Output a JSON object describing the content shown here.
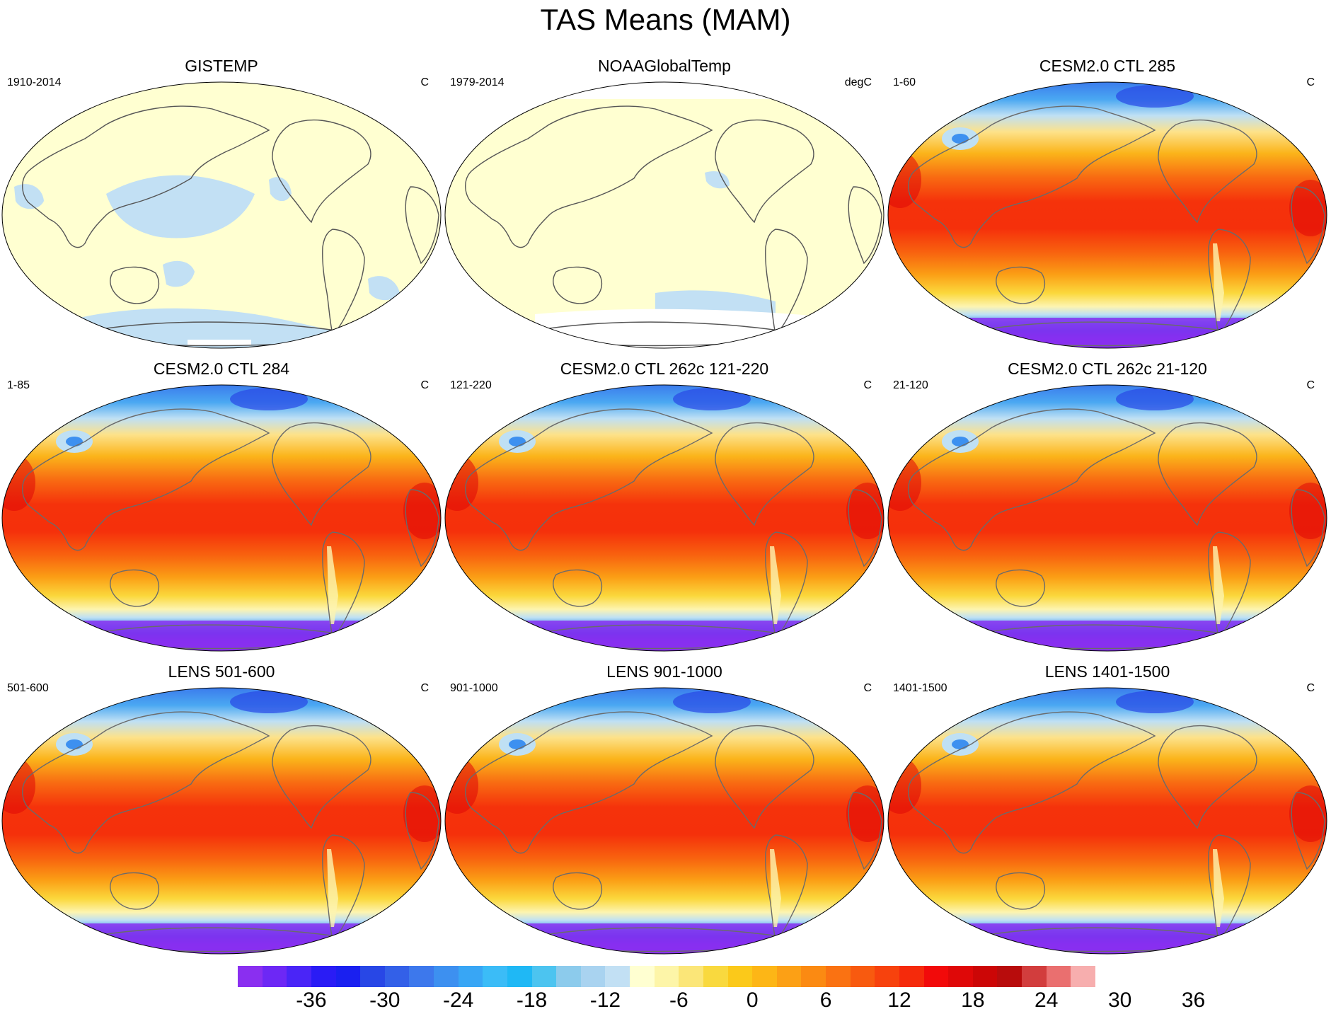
{
  "title": "TAS Means (MAM)",
  "panels": [
    {
      "title": "GISTEMP",
      "period": "1910-2014",
      "units": "C",
      "style": "obs-anomaly"
    },
    {
      "title": "NOAAGlobalTemp",
      "period": "1979-2014",
      "units": "degC",
      "style": "obs-sparse"
    },
    {
      "title": "CESM2.0 CTL 285",
      "period": "1-60",
      "units": "C",
      "style": "model"
    },
    {
      "title": "CESM2.0 CTL 284",
      "period": "1-85",
      "units": "C",
      "style": "model"
    },
    {
      "title": "CESM2.0 CTL 262c 121-220",
      "period": "121-220",
      "units": "C",
      "style": "model"
    },
    {
      "title": "CESM2.0 CTL 262c 21-120",
      "period": "21-120",
      "units": "C",
      "style": "model"
    },
    {
      "title": "LENS 501-600",
      "period": "501-600",
      "units": "C",
      "style": "model"
    },
    {
      "title": "LENS 901-1000",
      "period": "901-1000",
      "units": "C",
      "style": "model"
    },
    {
      "title": "LENS 1401-1500",
      "period": "1401-1500",
      "units": "C",
      "style": "model"
    }
  ],
  "colorbar": {
    "colors": [
      "#8a2ff0",
      "#6d28f5",
      "#4a25f7",
      "#2a1cf5",
      "#1a20f0",
      "#2847e6",
      "#3360e8",
      "#3d78ec",
      "#3d90f0",
      "#38a6f5",
      "#3bbcf7",
      "#1fb8f5",
      "#4cc4f0",
      "#8ccbec",
      "#a9d3f0",
      "#c2e0f4",
      "#ffffd1",
      "#fdf5a8",
      "#fbe678",
      "#f9d93e",
      "#fbc91a",
      "#fdb616",
      "#fca015",
      "#fb8a12",
      "#fa7212",
      "#f85a0f",
      "#f7420d",
      "#f52a0b",
      "#f20a0a",
      "#df0808",
      "#cc0606",
      "#b80c0c",
      "#d23d3d",
      "#ea6f6f",
      "#f7aeae"
    ],
    "ticks": [
      "-36",
      "-30",
      "-24",
      "-18",
      "-12",
      "-6",
      "0",
      "6",
      "12",
      "18",
      "24",
      "30",
      "36"
    ]
  }
}
